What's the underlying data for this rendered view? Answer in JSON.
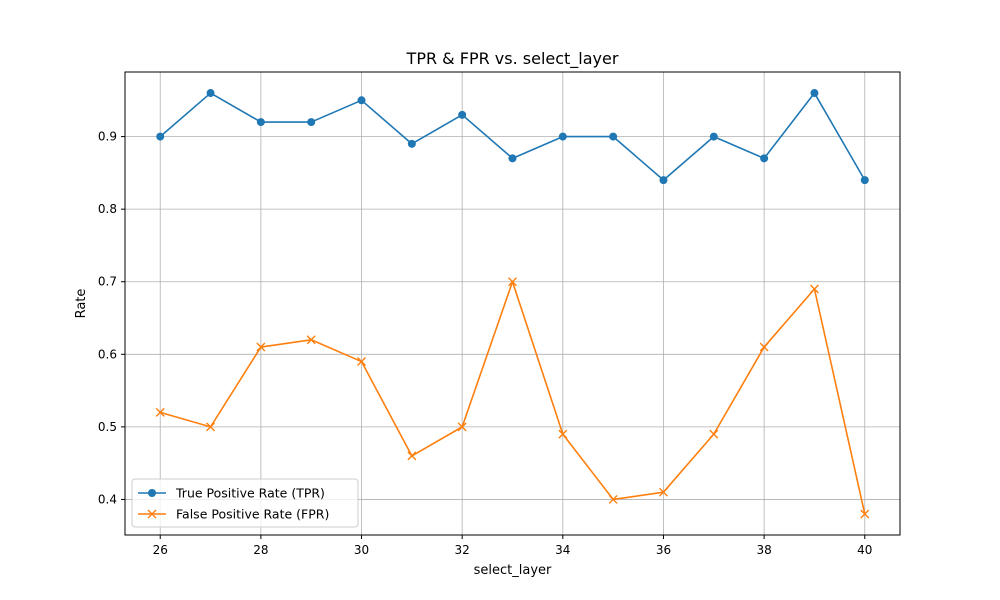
{
  "chart_data": {
    "type": "line",
    "title": "TPR & FPR vs. select_layer",
    "xlabel": "select_layer",
    "ylabel": "Rate",
    "x": [
      26,
      27,
      28,
      29,
      30,
      31,
      32,
      33,
      34,
      35,
      36,
      37,
      38,
      39,
      40
    ],
    "xlim": [
      25.3,
      40.7
    ],
    "ylim": [
      0.351,
      0.989
    ],
    "xticks": [
      26,
      28,
      30,
      32,
      34,
      36,
      38,
      40
    ],
    "yticks": [
      0.4,
      0.5,
      0.6,
      0.7,
      0.8,
      0.9
    ],
    "xtick_labels": [
      "26",
      "28",
      "30",
      "32",
      "34",
      "36",
      "38",
      "40"
    ],
    "ytick_labels": [
      "0.4",
      "0.5",
      "0.6",
      "0.7",
      "0.8",
      "0.9"
    ],
    "grid": true,
    "legend_position": "lower-left",
    "series": [
      {
        "name": "True Positive Rate (TPR)",
        "color": "#1f77b4",
        "marker": "circle",
        "values": [
          0.9,
          0.96,
          0.92,
          0.92,
          0.95,
          0.89,
          0.93,
          0.87,
          0.9,
          0.9,
          0.84,
          0.9,
          0.87,
          0.96,
          0.84
        ]
      },
      {
        "name": "False Positive Rate (FPR)",
        "color": "#ff7f0e",
        "marker": "x",
        "values": [
          0.52,
          0.5,
          0.61,
          0.62,
          0.59,
          0.46,
          0.5,
          0.7,
          0.49,
          0.4,
          0.41,
          0.49,
          0.61,
          0.69,
          0.38
        ]
      }
    ]
  }
}
